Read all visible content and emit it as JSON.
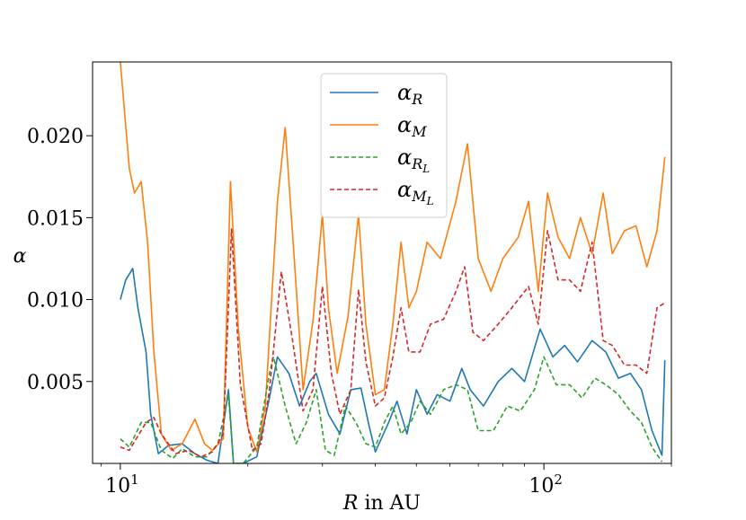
{
  "chart_data": {
    "type": "line",
    "xscale": "log",
    "xlim": [
      8.6,
      200
    ],
    "ylim": [
      0.0,
      0.0245
    ],
    "x_ticks": [
      {
        "value": 10,
        "base": "10",
        "exp": "1"
      },
      {
        "value": 100,
        "base": "10",
        "exp": "2"
      }
    ],
    "y_ticks": [
      {
        "value": 0.005,
        "label": "0.005"
      },
      {
        "value": 0.01,
        "label": "0.010"
      },
      {
        "value": 0.015,
        "label": "0.015"
      },
      {
        "value": 0.02,
        "label": "0.020"
      }
    ],
    "xlabel": {
      "var": "R",
      "rest": " in AU"
    },
    "ylabel": "α",
    "legend_position": "top-center",
    "series": [
      {
        "name": "α_R",
        "symbol": "α",
        "sub": "R",
        "subsub": "",
        "color": "#1f77b4",
        "dashed": false,
        "points": [
          [
            10,
            0.01
          ],
          [
            10.3,
            0.0112
          ],
          [
            10.7,
            0.0119
          ],
          [
            11.0,
            0.0095
          ],
          [
            11.5,
            0.0068
          ],
          [
            11.8,
            0.003
          ],
          [
            12.3,
            0.0006
          ],
          [
            13.0,
            0.0011
          ],
          [
            14.0,
            0.0012
          ],
          [
            15.0,
            0.0006
          ],
          [
            16.0,
            0.0002
          ],
          [
            17.0,
            0.0
          ],
          [
            18.0,
            0.0045
          ],
          [
            18.5,
            0.0
          ],
          [
            19.5,
            0.0
          ],
          [
            21.0,
            0.0004
          ],
          [
            22.5,
            0.004
          ],
          [
            23.5,
            0.0065
          ],
          [
            25.0,
            0.0055
          ],
          [
            26.5,
            0.0035
          ],
          [
            28.0,
            0.005
          ],
          [
            29.0,
            0.0055
          ],
          [
            31.0,
            0.003
          ],
          [
            33.0,
            0.0018
          ],
          [
            35.0,
            0.0045
          ],
          [
            37.0,
            0.0046
          ],
          [
            38.5,
            0.0025
          ],
          [
            40.0,
            0.0007
          ],
          [
            43.0,
            0.0025
          ],
          [
            45.0,
            0.0038
          ],
          [
            47.5,
            0.0018
          ],
          [
            50.0,
            0.0045
          ],
          [
            53.0,
            0.003
          ],
          [
            56.0,
            0.0042
          ],
          [
            60.0,
            0.0038
          ],
          [
            64.0,
            0.0058
          ],
          [
            67.0,
            0.0045
          ],
          [
            72.0,
            0.0035
          ],
          [
            78.0,
            0.005
          ],
          [
            84.0,
            0.0058
          ],
          [
            90.0,
            0.005
          ],
          [
            98.0,
            0.0082
          ],
          [
            105.0,
            0.0065
          ],
          [
            112.0,
            0.0072
          ],
          [
            120.0,
            0.0062
          ],
          [
            130.0,
            0.0075
          ],
          [
            140.0,
            0.0068
          ],
          [
            150.0,
            0.0052
          ],
          [
            160.0,
            0.0055
          ],
          [
            170.0,
            0.0045
          ],
          [
            180.0,
            0.002
          ],
          [
            190.0,
            0.0005
          ],
          [
            193.0,
            0.0063
          ]
        ]
      },
      {
        "name": "α_M",
        "symbol": "α",
        "sub": "M",
        "subsub": "",
        "color": "#ff7f0e",
        "dashed": false,
        "points": [
          [
            10,
            0.0245
          ],
          [
            10.5,
            0.018
          ],
          [
            10.8,
            0.0165
          ],
          [
            11.2,
            0.0172
          ],
          [
            11.6,
            0.0135
          ],
          [
            12.0,
            0.0068
          ],
          [
            12.5,
            0.0018
          ],
          [
            13.2,
            0.0008
          ],
          [
            14.0,
            0.0012
          ],
          [
            15.0,
            0.0027
          ],
          [
            15.8,
            0.0012
          ],
          [
            16.5,
            0.0008
          ],
          [
            17.5,
            0.0015
          ],
          [
            18.2,
            0.0172
          ],
          [
            19.0,
            0.0082
          ],
          [
            20.0,
            0.0022
          ],
          [
            21.0,
            0.0007
          ],
          [
            22.0,
            0.0035
          ],
          [
            23.5,
            0.016
          ],
          [
            24.5,
            0.0205
          ],
          [
            25.5,
            0.014
          ],
          [
            27.0,
            0.0045
          ],
          [
            28.5,
            0.0087
          ],
          [
            30.0,
            0.0152
          ],
          [
            31.0,
            0.0095
          ],
          [
            32.5,
            0.0055
          ],
          [
            34.5,
            0.009
          ],
          [
            36.5,
            0.0152
          ],
          [
            38.0,
            0.0085
          ],
          [
            40.0,
            0.0042
          ],
          [
            42.0,
            0.0045
          ],
          [
            44.0,
            0.0085
          ],
          [
            46.0,
            0.0135
          ],
          [
            48.0,
            0.0095
          ],
          [
            50.0,
            0.0105
          ],
          [
            53.0,
            0.0135
          ],
          [
            57.0,
            0.0125
          ],
          [
            62.0,
            0.016
          ],
          [
            66.0,
            0.0195
          ],
          [
            70.0,
            0.0125
          ],
          [
            75.0,
            0.0105
          ],
          [
            80.0,
            0.0125
          ],
          [
            87.0,
            0.0138
          ],
          [
            92.0,
            0.016
          ],
          [
            97.0,
            0.0105
          ],
          [
            102.0,
            0.0165
          ],
          [
            108.0,
            0.0138
          ],
          [
            115.0,
            0.0125
          ],
          [
            122.0,
            0.015
          ],
          [
            130.0,
            0.0128
          ],
          [
            138.0,
            0.0165
          ],
          [
            145.0,
            0.0128
          ],
          [
            155.0,
            0.0142
          ],
          [
            165.0,
            0.0145
          ],
          [
            175.0,
            0.012
          ],
          [
            185.0,
            0.0142
          ],
          [
            193.0,
            0.0187
          ]
        ]
      },
      {
        "name": "α_R_L",
        "symbol": "α",
        "sub": "R",
        "subsub": "L",
        "color": "#2ca02c",
        "dashed": true,
        "points": [
          [
            10,
            0.0015
          ],
          [
            10.5,
            0.001
          ],
          [
            11.2,
            0.0025
          ],
          [
            11.8,
            0.0025
          ],
          [
            12.5,
            0.0008
          ],
          [
            13.3,
            0.0003
          ],
          [
            14.0,
            0.0009
          ],
          [
            15.0,
            0.0004
          ],
          [
            16.0,
            0.0004
          ],
          [
            17.0,
            0.0012
          ],
          [
            18.0,
            0.0042
          ],
          [
            18.5,
            0.0
          ],
          [
            19.5,
            0.0
          ],
          [
            21.0,
            0.001
          ],
          [
            22.5,
            0.0055
          ],
          [
            23.0,
            0.0065
          ],
          [
            24.5,
            0.0035
          ],
          [
            26.0,
            0.0012
          ],
          [
            27.5,
            0.0025
          ],
          [
            29.0,
            0.0045
          ],
          [
            30.5,
            0.0008
          ],
          [
            32.0,
            0.0005
          ],
          [
            34.0,
            0.0035
          ],
          [
            36.0,
            0.0025
          ],
          [
            38.0,
            0.0012
          ],
          [
            40.0,
            0.001
          ],
          [
            42.0,
            0.0025
          ],
          [
            44.0,
            0.0035
          ],
          [
            46.0,
            0.0018
          ],
          [
            48.5,
            0.0025
          ],
          [
            51.0,
            0.0038
          ],
          [
            54.0,
            0.003
          ],
          [
            58.0,
            0.0045
          ],
          [
            62.0,
            0.0048
          ],
          [
            66.0,
            0.0045
          ],
          [
            70.0,
            0.002
          ],
          [
            76.0,
            0.002
          ],
          [
            82.0,
            0.0035
          ],
          [
            88.0,
            0.0032
          ],
          [
            95.0,
            0.0045
          ],
          [
            100.0,
            0.0065
          ],
          [
            107.0,
            0.0048
          ],
          [
            115.0,
            0.0048
          ],
          [
            123.0,
            0.004
          ],
          [
            132.0,
            0.0052
          ],
          [
            140.0,
            0.0048
          ],
          [
            150.0,
            0.0042
          ],
          [
            160.0,
            0.0032
          ],
          [
            170.0,
            0.0025
          ],
          [
            180.0,
            0.001
          ],
          [
            190.0,
            0.0001
          ]
        ]
      },
      {
        "name": "α_M_L",
        "symbol": "α",
        "sub": "M",
        "subsub": "L",
        "color": "#d62728",
        "dashed": true,
        "points": [
          [
            10,
            0.001
          ],
          [
            10.5,
            0.0008
          ],
          [
            11.5,
            0.0025
          ],
          [
            12.0,
            0.0028
          ],
          [
            12.5,
            0.0018
          ],
          [
            13.5,
            0.0006
          ],
          [
            14.5,
            0.0008
          ],
          [
            15.5,
            0.0004
          ],
          [
            16.5,
            0.0007
          ],
          [
            17.5,
            0.0018
          ],
          [
            18.3,
            0.0143
          ],
          [
            19.2,
            0.0048
          ],
          [
            20.5,
            0.0008
          ],
          [
            21.5,
            0.0012
          ],
          [
            22.5,
            0.0045
          ],
          [
            24.0,
            0.0117
          ],
          [
            25.5,
            0.0075
          ],
          [
            27.0,
            0.0032
          ],
          [
            28.5,
            0.0045
          ],
          [
            30.0,
            0.0108
          ],
          [
            31.5,
            0.0055
          ],
          [
            33.0,
            0.003
          ],
          [
            35.0,
            0.0045
          ],
          [
            36.5,
            0.0106
          ],
          [
            38.0,
            0.0062
          ],
          [
            40.0,
            0.0035
          ],
          [
            42.0,
            0.004
          ],
          [
            44.0,
            0.0065
          ],
          [
            46.0,
            0.0095
          ],
          [
            48.0,
            0.0068
          ],
          [
            51.0,
            0.0068
          ],
          [
            54.0,
            0.0085
          ],
          [
            58.0,
            0.0088
          ],
          [
            62.0,
            0.0105
          ],
          [
            65.0,
            0.012
          ],
          [
            68.0,
            0.008
          ],
          [
            72.0,
            0.0075
          ],
          [
            78.0,
            0.0085
          ],
          [
            84.0,
            0.0095
          ],
          [
            92.0,
            0.0108
          ],
          [
            97.0,
            0.0085
          ],
          [
            102.0,
            0.0142
          ],
          [
            108.0,
            0.0112
          ],
          [
            115.0,
            0.0112
          ],
          [
            122.0,
            0.0105
          ],
          [
            130.0,
            0.0135
          ],
          [
            138.0,
            0.0075
          ],
          [
            145.0,
            0.0072
          ],
          [
            155.0,
            0.006
          ],
          [
            165.0,
            0.006
          ],
          [
            175.0,
            0.0055
          ],
          [
            185.0,
            0.0095
          ],
          [
            193.0,
            0.0098
          ]
        ]
      }
    ]
  }
}
